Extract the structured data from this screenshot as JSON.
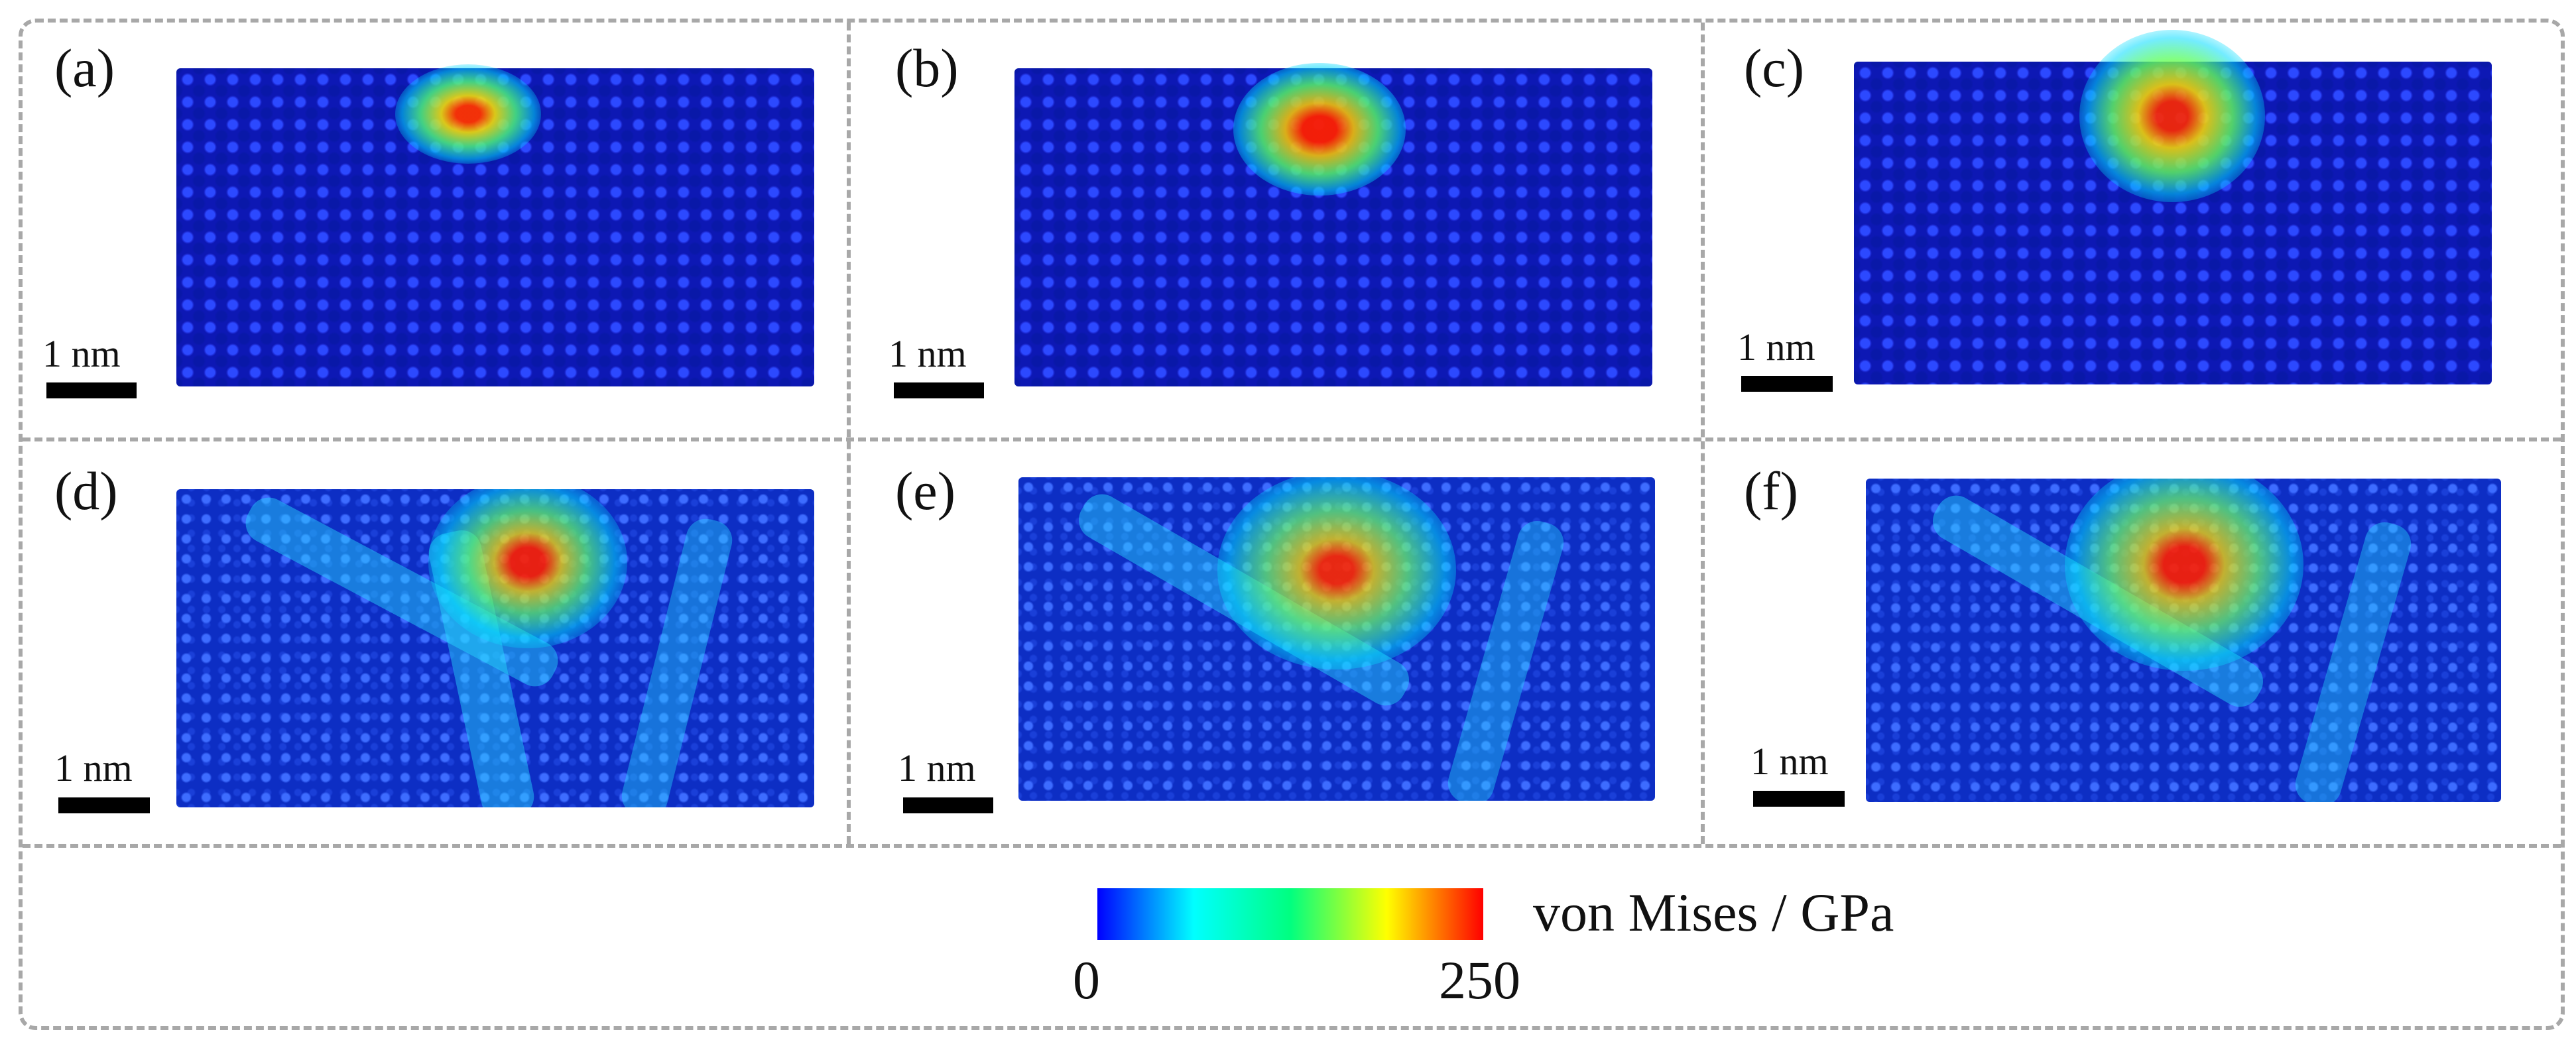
{
  "panels": [
    {
      "label": "(a)",
      "scale_label": "1 nm"
    },
    {
      "label": "(b)",
      "scale_label": "1 nm"
    },
    {
      "label": "(c)",
      "scale_label": "1 nm"
    },
    {
      "label": "(d)",
      "scale_label": "1 nm"
    },
    {
      "label": "(e)",
      "scale_label": "1 nm"
    },
    {
      "label": "(f)",
      "scale_label": "1 nm"
    }
  ],
  "colorbar": {
    "title": "von Mises / GPa",
    "min_label": "0",
    "max_label": "250",
    "colors": [
      "#0000ff",
      "#00ffff",
      "#00ff80",
      "#ffff00",
      "#ff0000"
    ]
  }
}
